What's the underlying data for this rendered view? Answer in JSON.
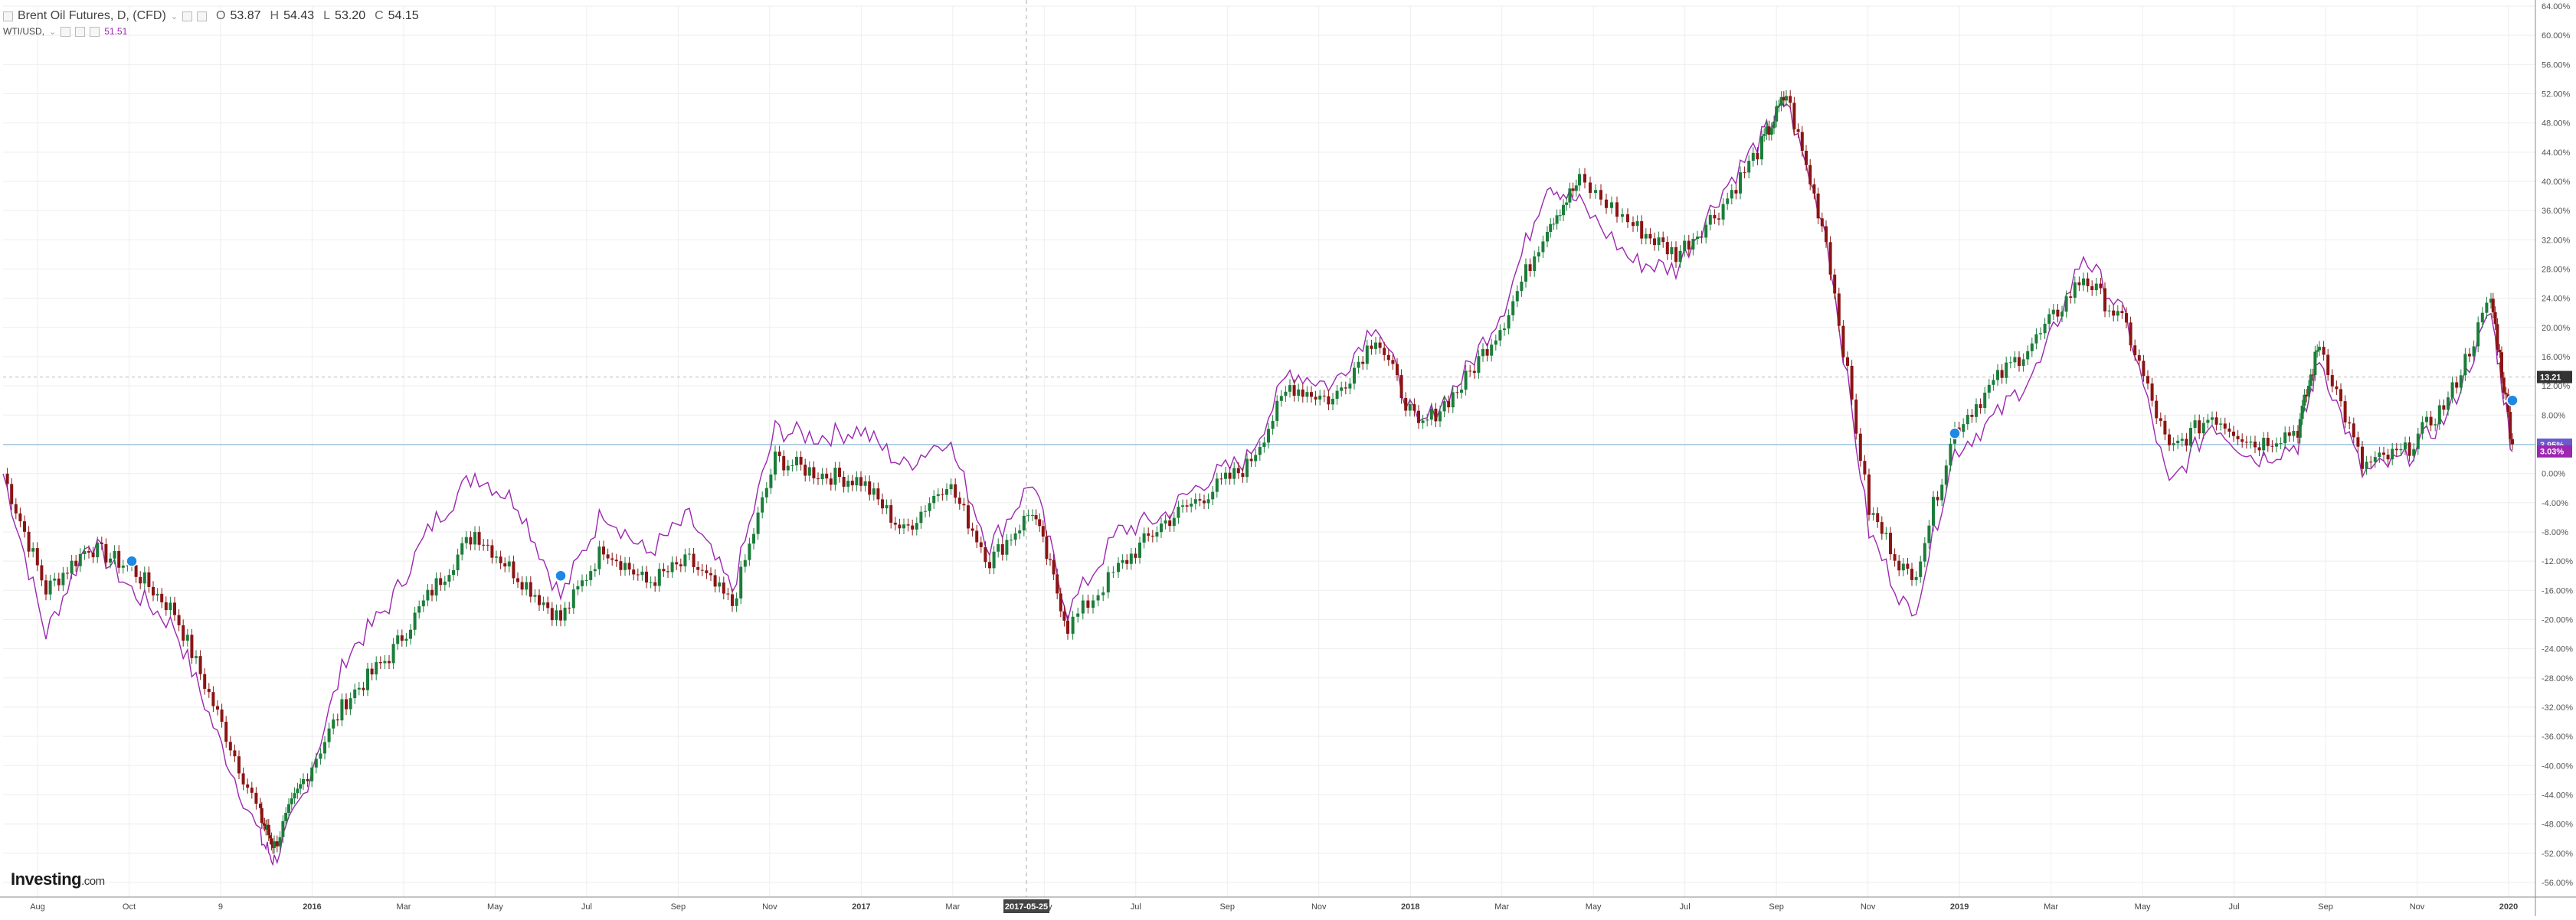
{
  "legend": {
    "symbol": "Brent Oil Futures, D, (CFD)",
    "open_label": "O",
    "open": "53.87",
    "high_label": "H",
    "high": "54.43",
    "low_label": "L",
    "low": "53.20",
    "close_label": "C",
    "close": "54.15",
    "compare_symbol": "WTI/USD,",
    "compare_value": "51.51"
  },
  "logo": {
    "brand": "Investing",
    "suffix": ".com"
  },
  "colors": {
    "up_candle": "#1b7d3a",
    "down_candle": "#8b1414",
    "wti_line": "#9c27b0",
    "grid": "#eeeeee",
    "reference_line": "#7fb3d5",
    "brent_badge": "#6a5acd",
    "wti_badge": "#9c27b0"
  },
  "chart_data": {
    "type": "line",
    "y_unit": "percent change",
    "ylim": [
      -58,
      64
    ],
    "y_ticks": [
      "64.00%",
      "60.00%",
      "56.00%",
      "52.00%",
      "48.00%",
      "44.00%",
      "40.00%",
      "36.00%",
      "32.00%",
      "28.00%",
      "24.00%",
      "20.00%",
      "16.00%",
      "12.00%",
      "8.00%",
      "4.00%",
      "0.00%",
      "-4.00%",
      "-8.00%",
      "-12.00%",
      "-16.00%",
      "-20.00%",
      "-24.00%",
      "-28.00%",
      "-32.00%",
      "-36.00%",
      "-40.00%",
      "-44.00%",
      "-48.00%",
      "-52.00%",
      "-56.00%"
    ],
    "x_ticks": [
      "Aug",
      "Oct",
      "9",
      "2016",
      "Mar",
      "May",
      "Jul",
      "Sep",
      "Nov",
      "2017",
      "Mar",
      "May",
      "Jul",
      "Sep",
      "Nov",
      "2018",
      "Mar",
      "May",
      "Jul",
      "Sep",
      "Nov",
      "2019",
      "Mar",
      "May",
      "Jul",
      "Sep",
      "Nov",
      "2020"
    ],
    "crosshair_date": "2017-05-25",
    "grid": true,
    "current_price_label": "13.21",
    "last_value_labels": {
      "brent": "3.95%",
      "wti": "3.03%"
    },
    "series": [
      {
        "name": "Brent Oil Futures, D, (CFD)",
        "style": "candlestick",
        "x": [
          "2015-07-27",
          "2015-08-24",
          "2015-09-21",
          "2015-10-19",
          "2015-11-16",
          "2015-12-14",
          "2016-01-11",
          "2016-01-20",
          "2016-02-08",
          "2016-03-07",
          "2016-04-04",
          "2016-05-02",
          "2016-05-30",
          "2016-06-27",
          "2016-07-25",
          "2016-08-22",
          "2016-09-19",
          "2016-10-17",
          "2016-11-14",
          "2016-12-12",
          "2017-01-09",
          "2017-02-06",
          "2017-03-06",
          "2017-04-03",
          "2017-05-01",
          "2017-05-29",
          "2017-06-21",
          "2017-07-24",
          "2017-08-21",
          "2017-09-18",
          "2017-10-16",
          "2017-11-13",
          "2017-12-11",
          "2018-01-08",
          "2018-02-05",
          "2018-03-05",
          "2018-04-02",
          "2018-04-30",
          "2018-05-21",
          "2018-06-25",
          "2018-07-23",
          "2018-08-20",
          "2018-09-17",
          "2018-10-03",
          "2018-10-29",
          "2018-11-26",
          "2018-12-24",
          "2019-01-21",
          "2019-02-18",
          "2019-03-18",
          "2019-04-15",
          "2019-05-13",
          "2019-06-10",
          "2019-07-08",
          "2019-08-05",
          "2019-09-02",
          "2019-09-16",
          "2019-10-14",
          "2019-11-11",
          "2019-12-09",
          "2020-01-06",
          "2020-01-20"
        ],
        "values": [
          0,
          -16,
          -10,
          -13,
          -19,
          -33,
          -47,
          -51,
          -42,
          -31,
          -25,
          -16,
          -8,
          -14,
          -20,
          -10,
          -15,
          -12,
          -18,
          2,
          0,
          -1,
          -8,
          -1,
          -12,
          -5,
          -21,
          -13,
          -7,
          -3,
          1,
          12,
          10,
          19,
          6,
          12,
          21,
          34,
          40,
          34,
          30,
          36,
          45,
          52,
          32,
          -5,
          -15,
          6,
          13,
          19,
          27,
          20,
          3,
          8,
          4,
          6,
          18,
          1,
          3,
          10,
          24,
          4
        ]
      },
      {
        "name": "WTI/USD",
        "style": "line",
        "x": [
          "2015-07-27",
          "2015-08-24",
          "2015-09-21",
          "2015-10-19",
          "2015-11-16",
          "2015-12-14",
          "2016-01-11",
          "2016-01-20",
          "2016-02-08",
          "2016-03-07",
          "2016-04-04",
          "2016-05-02",
          "2016-05-30",
          "2016-06-27",
          "2016-07-25",
          "2016-08-22",
          "2016-09-19",
          "2016-10-17",
          "2016-11-14",
          "2016-12-12",
          "2017-01-09",
          "2017-02-06",
          "2017-03-06",
          "2017-04-03",
          "2017-05-01",
          "2017-05-29",
          "2017-06-21",
          "2017-07-24",
          "2017-08-21",
          "2017-09-18",
          "2017-10-16",
          "2017-11-13",
          "2017-12-11",
          "2018-01-08",
          "2018-02-05",
          "2018-03-05",
          "2018-04-02",
          "2018-04-30",
          "2018-05-21",
          "2018-06-25",
          "2018-07-23",
          "2018-08-20",
          "2018-09-17",
          "2018-10-03",
          "2018-10-29",
          "2018-11-26",
          "2018-12-24",
          "2019-01-21",
          "2019-02-18",
          "2019-03-18",
          "2019-04-15",
          "2019-05-13",
          "2019-06-10",
          "2019-07-08",
          "2019-08-05",
          "2019-09-02",
          "2019-09-16",
          "2019-10-14",
          "2019-11-11",
          "2019-12-09",
          "2020-01-06",
          "2020-01-20"
        ],
        "values": [
          0,
          -22,
          -9,
          -16,
          -21,
          -36,
          -50,
          -53,
          -44,
          -25,
          -18,
          -7,
          0,
          -4,
          -17,
          -5,
          -11,
          -6,
          -16,
          6,
          5,
          6,
          1,
          5,
          -10,
          -1,
          -19,
          -8,
          -6,
          -1,
          2,
          14,
          12,
          21,
          6,
          13,
          23,
          40,
          37,
          29,
          28,
          38,
          46,
          51,
          33,
          -8,
          -20,
          3,
          8,
          15,
          30,
          21,
          -2,
          7,
          2,
          4,
          16,
          0,
          2,
          8,
          22,
          3
        ]
      }
    ]
  }
}
